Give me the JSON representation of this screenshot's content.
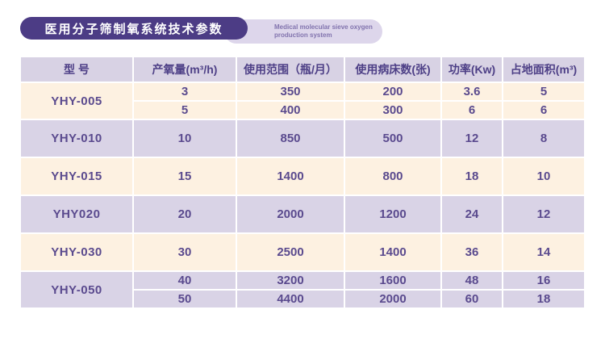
{
  "title": {
    "zh": "医用分子筛制氧系统技术参数",
    "en_line1": "Medical molecular sieve oxygen",
    "en_line2": "production system"
  },
  "table": {
    "headers": [
      "型  号",
      "产氧量(m³/h)",
      "使用范围（瓶/月）",
      "使用病床数(张)",
      "功率(Kw)",
      "占地面积(m³)"
    ],
    "rows": [
      {
        "model": "YHY-005",
        "specs": [
          [
            "3",
            "350",
            "200",
            "3.6",
            "5"
          ],
          [
            "5",
            "400",
            "300",
            "6",
            "6"
          ]
        ]
      },
      {
        "model": "YHY-010",
        "specs": [
          [
            "10",
            "850",
            "500",
            "12",
            "8"
          ]
        ]
      },
      {
        "model": "YHY-015",
        "specs": [
          [
            "15",
            "1400",
            "800",
            "18",
            "10"
          ]
        ]
      },
      {
        "model": "YHY020",
        "specs": [
          [
            "20",
            "2000",
            "1200",
            "24",
            "12"
          ]
        ]
      },
      {
        "model": "YHY-030",
        "specs": [
          [
            "30",
            "2500",
            "1400",
            "36",
            "14"
          ]
        ]
      },
      {
        "model": "YHY-050",
        "specs": [
          [
            "40",
            "3200",
            "1600",
            "48",
            "16"
          ],
          [
            "50",
            "4400",
            "2000",
            "60",
            "18"
          ]
        ]
      }
    ]
  },
  "colors": {
    "badge_dark": "#4c3c85",
    "badge_light": "#ddd6eb",
    "header_bg": "#d8d2e4",
    "row_cream": "#fdf1e1",
    "row_lavender": "#d9d3e6",
    "text_purple": "#5a4a8e",
    "subtitle_text": "#8274ae"
  }
}
